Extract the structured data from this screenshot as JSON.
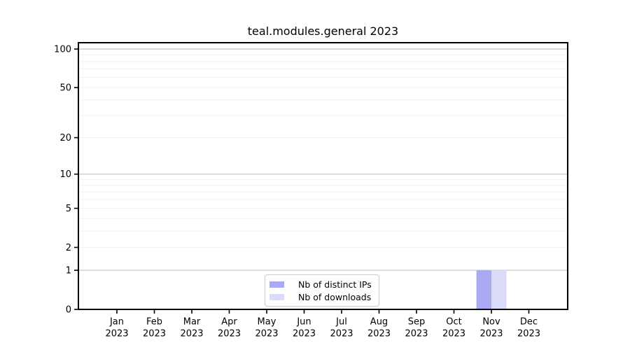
{
  "chart_data": {
    "type": "bar",
    "title": "teal.modules.general 2023",
    "xlabel": "",
    "ylabel": "",
    "x_categories": [
      {
        "month": "Jan",
        "year": "2023"
      },
      {
        "month": "Feb",
        "year": "2023"
      },
      {
        "month": "Mar",
        "year": "2023"
      },
      {
        "month": "Apr",
        "year": "2023"
      },
      {
        "month": "May",
        "year": "2023"
      },
      {
        "month": "Jun",
        "year": "2023"
      },
      {
        "month": "Jul",
        "year": "2023"
      },
      {
        "month": "Aug",
        "year": "2023"
      },
      {
        "month": "Sep",
        "year": "2023"
      },
      {
        "month": "Oct",
        "year": "2023"
      },
      {
        "month": "Nov",
        "year": "2023"
      },
      {
        "month": "Dec",
        "year": "2023"
      }
    ],
    "series": [
      {
        "name": "Nb of distinct IPs",
        "color": "#a9a9f4",
        "values": [
          0,
          0,
          0,
          0,
          0,
          0,
          0,
          0,
          0,
          0,
          1,
          0
        ]
      },
      {
        "name": "Nb of downloads",
        "color": "#dadaf9",
        "values": [
          0,
          0,
          0,
          0,
          0,
          0,
          0,
          0,
          0,
          0,
          1,
          0
        ]
      }
    ],
    "y_scale": "log1p",
    "ylim": [
      0,
      112
    ],
    "y_ticks": [
      0,
      1,
      2,
      5,
      10,
      20,
      50,
      100
    ],
    "y_major_gridlines": [
      1,
      10,
      100
    ],
    "y_minor_gridlines": [
      2,
      3,
      4,
      5,
      6,
      7,
      8,
      9,
      20,
      30,
      40,
      50,
      60,
      70,
      80,
      90
    ],
    "grid": "horizontal",
    "legend_position": "lower center"
  },
  "legend": {
    "items": [
      {
        "label": "Nb of distinct IPs",
        "color": "#a9a9f4"
      },
      {
        "label": "Nb of downloads",
        "color": "#dadaf9"
      }
    ]
  },
  "colors": {
    "axis": "#000000",
    "text": "#000000",
    "major_grid": "#c9c9c9",
    "minor_grid": "#efefef",
    "background": "#ffffff"
  }
}
